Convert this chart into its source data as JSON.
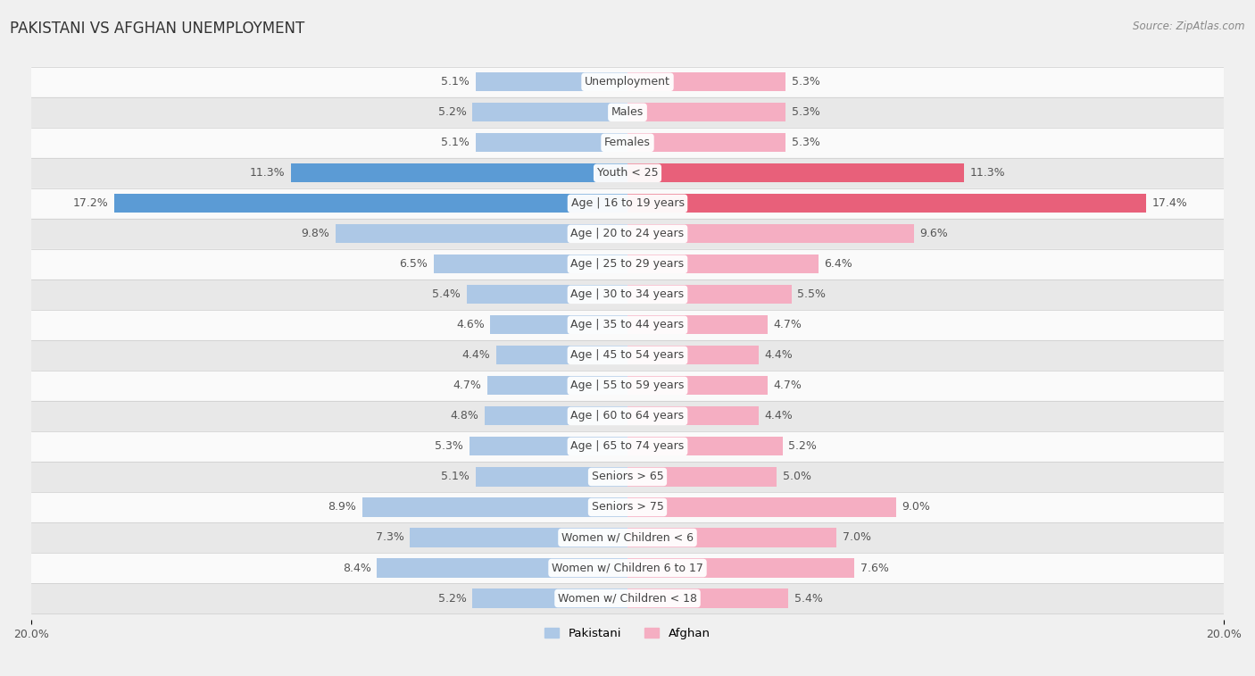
{
  "title": "PAKISTANI VS AFGHAN UNEMPLOYMENT",
  "source": "Source: ZipAtlas.com",
  "categories": [
    "Unemployment",
    "Males",
    "Females",
    "Youth < 25",
    "Age | 16 to 19 years",
    "Age | 20 to 24 years",
    "Age | 25 to 29 years",
    "Age | 30 to 34 years",
    "Age | 35 to 44 years",
    "Age | 45 to 54 years",
    "Age | 55 to 59 years",
    "Age | 60 to 64 years",
    "Age | 65 to 74 years",
    "Seniors > 65",
    "Seniors > 75",
    "Women w/ Children < 6",
    "Women w/ Children 6 to 17",
    "Women w/ Children < 18"
  ],
  "pakistani": [
    5.1,
    5.2,
    5.1,
    11.3,
    17.2,
    9.8,
    6.5,
    5.4,
    4.6,
    4.4,
    4.7,
    4.8,
    5.3,
    5.1,
    8.9,
    7.3,
    8.4,
    5.2
  ],
  "afghan": [
    5.3,
    5.3,
    5.3,
    11.3,
    17.4,
    9.6,
    6.4,
    5.5,
    4.7,
    4.4,
    4.7,
    4.4,
    5.2,
    5.0,
    9.0,
    7.0,
    7.6,
    5.4
  ],
  "pakistani_color": "#adc8e6",
  "afghan_color": "#f5aec2",
  "highlight_pakistani": "#5b9bd5",
  "highlight_afghan": "#e8607a",
  "highlight_rows": [
    3,
    4
  ],
  "max_val": 20.0,
  "background_color": "#f0f0f0",
  "row_bg_light": "#fafafa",
  "row_bg_dark": "#e8e8e8",
  "bar_height": 0.62,
  "label_fontsize": 9.0,
  "category_fontsize": 9.0,
  "title_fontsize": 12,
  "source_fontsize": 8.5,
  "legend_fontsize": 9.5,
  "axis_label_fontsize": 9
}
